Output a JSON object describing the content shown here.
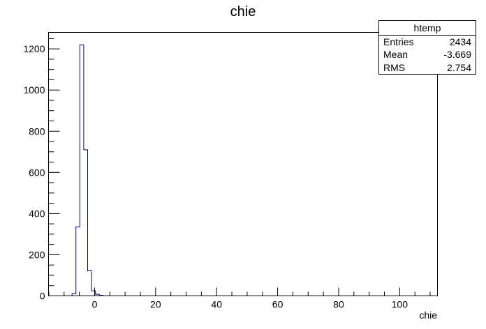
{
  "chart_data": {
    "type": "bar",
    "title": "chie",
    "xlabel": "chie",
    "ylabel": "",
    "xlim": [
      -15.1,
      112.4
    ],
    "ylim": [
      0,
      1280
    ],
    "x_ticks": [
      0,
      20,
      40,
      60,
      80,
      100
    ],
    "y_ticks": [
      0,
      200,
      400,
      600,
      800,
      1000,
      1200
    ],
    "bin_width": 1.28,
    "bins": [
      {
        "x0": -7.4,
        "count": 10
      },
      {
        "x0": -6.12,
        "count": 335
      },
      {
        "x0": -4.84,
        "count": 1220
      },
      {
        "x0": -3.56,
        "count": 710
      },
      {
        "x0": -2.28,
        "count": 122
      },
      {
        "x0": -1.0,
        "count": 25
      },
      {
        "x0": 0.28,
        "count": 8
      },
      {
        "x0": 1.56,
        "count": 2
      }
    ],
    "line_color": "#000099",
    "legend_position": "top-right",
    "stats": {
      "name": "htemp",
      "rows": [
        {
          "label": "Entries",
          "value": "2434"
        },
        {
          "label": "Mean",
          "value": "-3.669"
        },
        {
          "label": "RMS",
          "value": "2.754"
        }
      ]
    }
  }
}
